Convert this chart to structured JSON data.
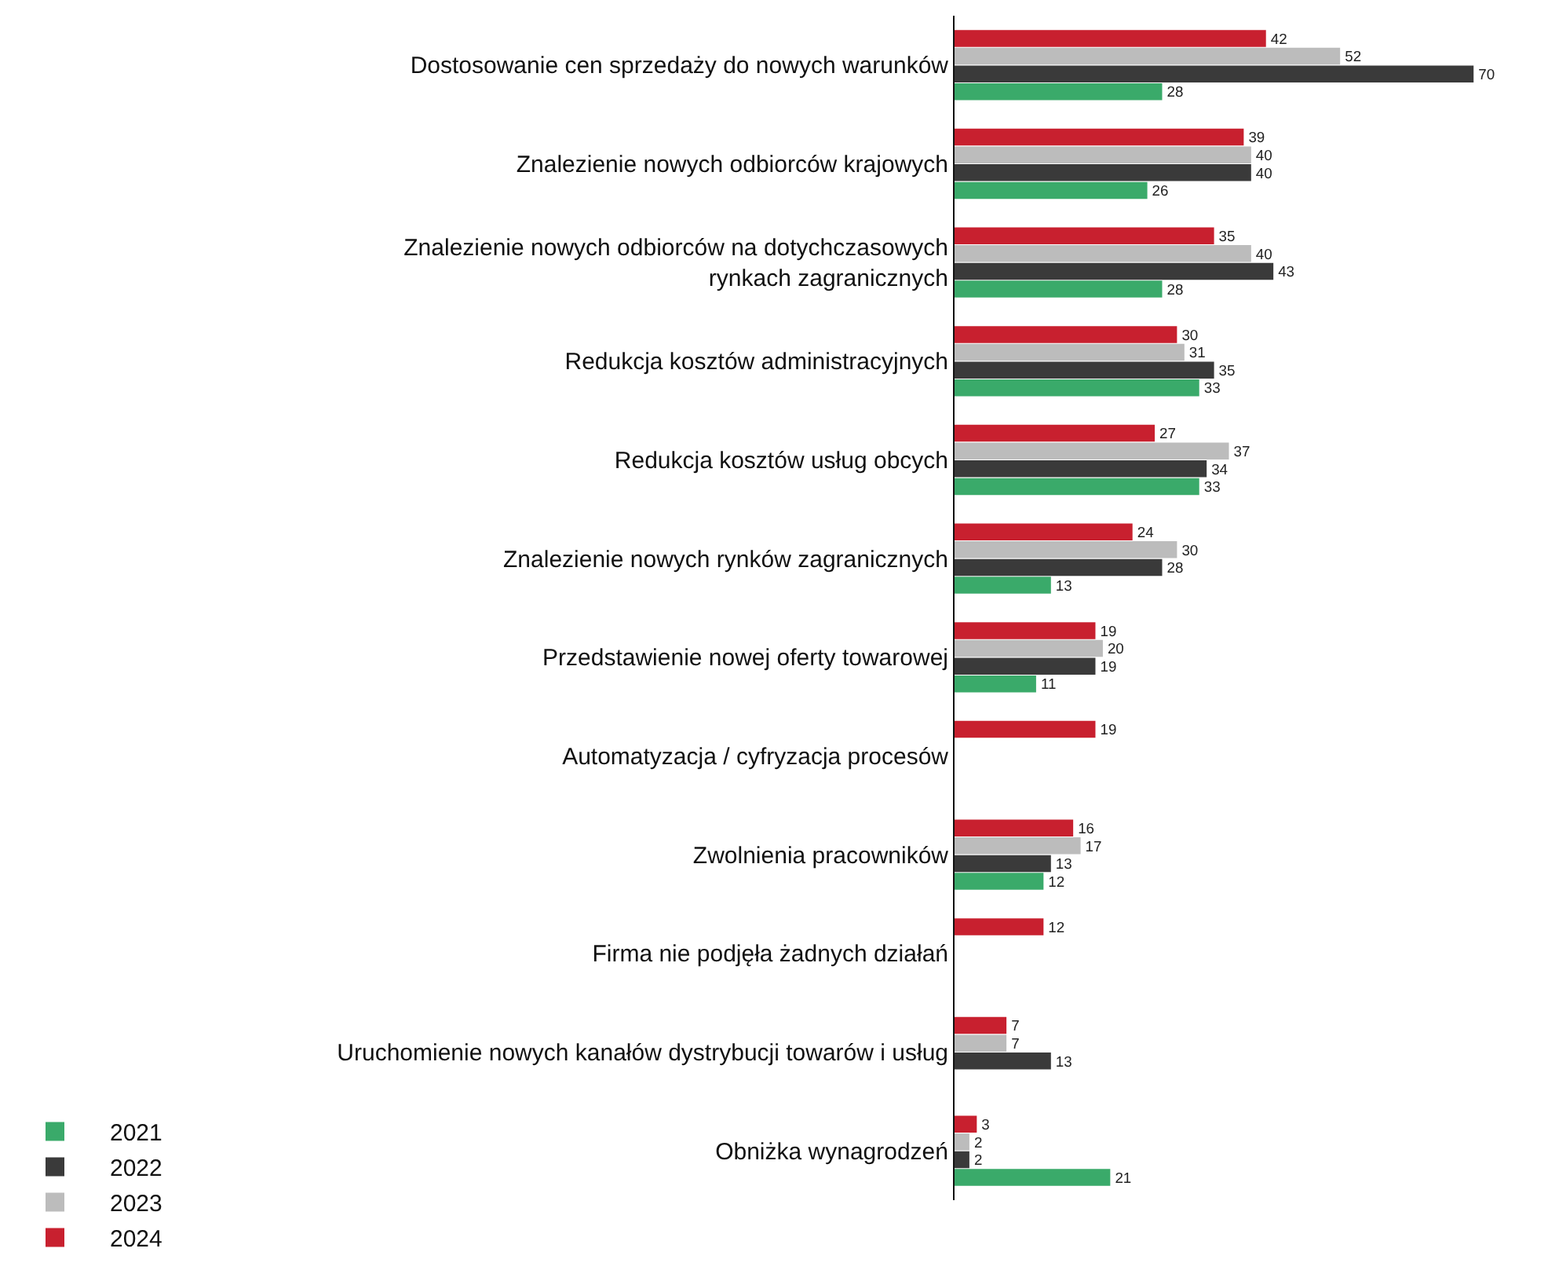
{
  "chart_data": {
    "type": "bar",
    "orientation": "horizontal",
    "data_labels": true,
    "legend": "bottom",
    "tick_labels": "y",
    "categories": [
      "Dostosowanie cen sprzedaży do nowych warunków",
      "Znalezienie nowych odbiorców krajowych",
      "Znalezienie nowych odbiorców na dotychczasowych\nrynkach zagranicznych",
      "Redukcja kosztów administracyjnych",
      "Redukcja kosztów usług obcych",
      "Znalezienie nowych rynków zagranicznych",
      "Przedstawienie nowej oferty towarowej",
      "Automatyzacja / cyfryzacja procesów",
      "Zwolnienia pracowników",
      "Firma nie podjęła żadnych działań",
      "Uruchomienie nowych kanałów dystrybucji towarów i usług",
      "Obniżka wynagrodzeń"
    ],
    "series": [
      {
        "name": "2024",
        "color": "#c8202f",
        "values": [
          42,
          39,
          35,
          30,
          27,
          24,
          19,
          19,
          16,
          12,
          7,
          3
        ]
      },
      {
        "name": "2023",
        "color": "#bcbcbc",
        "values": [
          52,
          40,
          40,
          31,
          37,
          30,
          20,
          null,
          17,
          null,
          7,
          2
        ]
      },
      {
        "name": "2022",
        "color": "#3a3a3a",
        "values": [
          70,
          40,
          43,
          35,
          34,
          28,
          19,
          null,
          13,
          null,
          13,
          2
        ]
      },
      {
        "name": "2021",
        "color": "#3aaa6a",
        "values": [
          28,
          26,
          28,
          33,
          33,
          13,
          11,
          null,
          12,
          null,
          null,
          21
        ]
      }
    ]
  }
}
